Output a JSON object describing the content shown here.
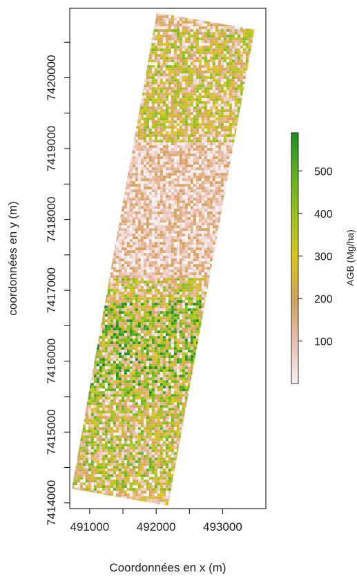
{
  "chart_data": {
    "type": "heatmap",
    "xlabel": "Coordonnées en x (m)",
    "ylabel": "coordonnées en y (m)",
    "x_ticks": [
      "491000",
      "492000",
      "493000"
    ],
    "y_ticks": [
      "7414000",
      "7415000",
      "7416000",
      "7417000",
      "7418000",
      "7419000",
      "7420000"
    ],
    "xlim": [
      490700,
      493650
    ],
    "ylim": [
      7413920,
      7420980
    ],
    "legend": {
      "title": "AGB (Mg/ha)",
      "ticks": [
        "100",
        "200",
        "300",
        "400",
        "500"
      ],
      "range": [
        0,
        590
      ],
      "colors": [
        "#f5f1f2",
        "#ebbfb1",
        "#d4a05c",
        "#dbc51e",
        "#9cc21e",
        "#5fb21d",
        "#1d8e1f"
      ]
    },
    "raster_strip": {
      "corners_map_units": [
        [
          492010,
          7420920
        ],
        [
          493480,
          7420680
        ],
        [
          492180,
          7413960
        ],
        [
          490730,
          7414200
        ]
      ],
      "zones": [
        {
          "y_range": [
            7420700,
            7420920
          ],
          "mean_agb": 120
        },
        {
          "y_range": [
            7420150,
            7420700
          ],
          "mean_agb": 220
        },
        {
          "y_range": [
            7419100,
            7420150
          ],
          "mean_agb": 210
        },
        {
          "y_range": [
            7417200,
            7419100
          ],
          "mean_agb": 90
        },
        {
          "y_range": [
            7416900,
            7417200
          ],
          "mean_agb": 230
        },
        {
          "y_range": [
            7415500,
            7416900
          ],
          "mean_agb": 300
        },
        {
          "y_range": [
            7414200,
            7415500
          ],
          "mean_agb": 240
        }
      ]
    }
  }
}
